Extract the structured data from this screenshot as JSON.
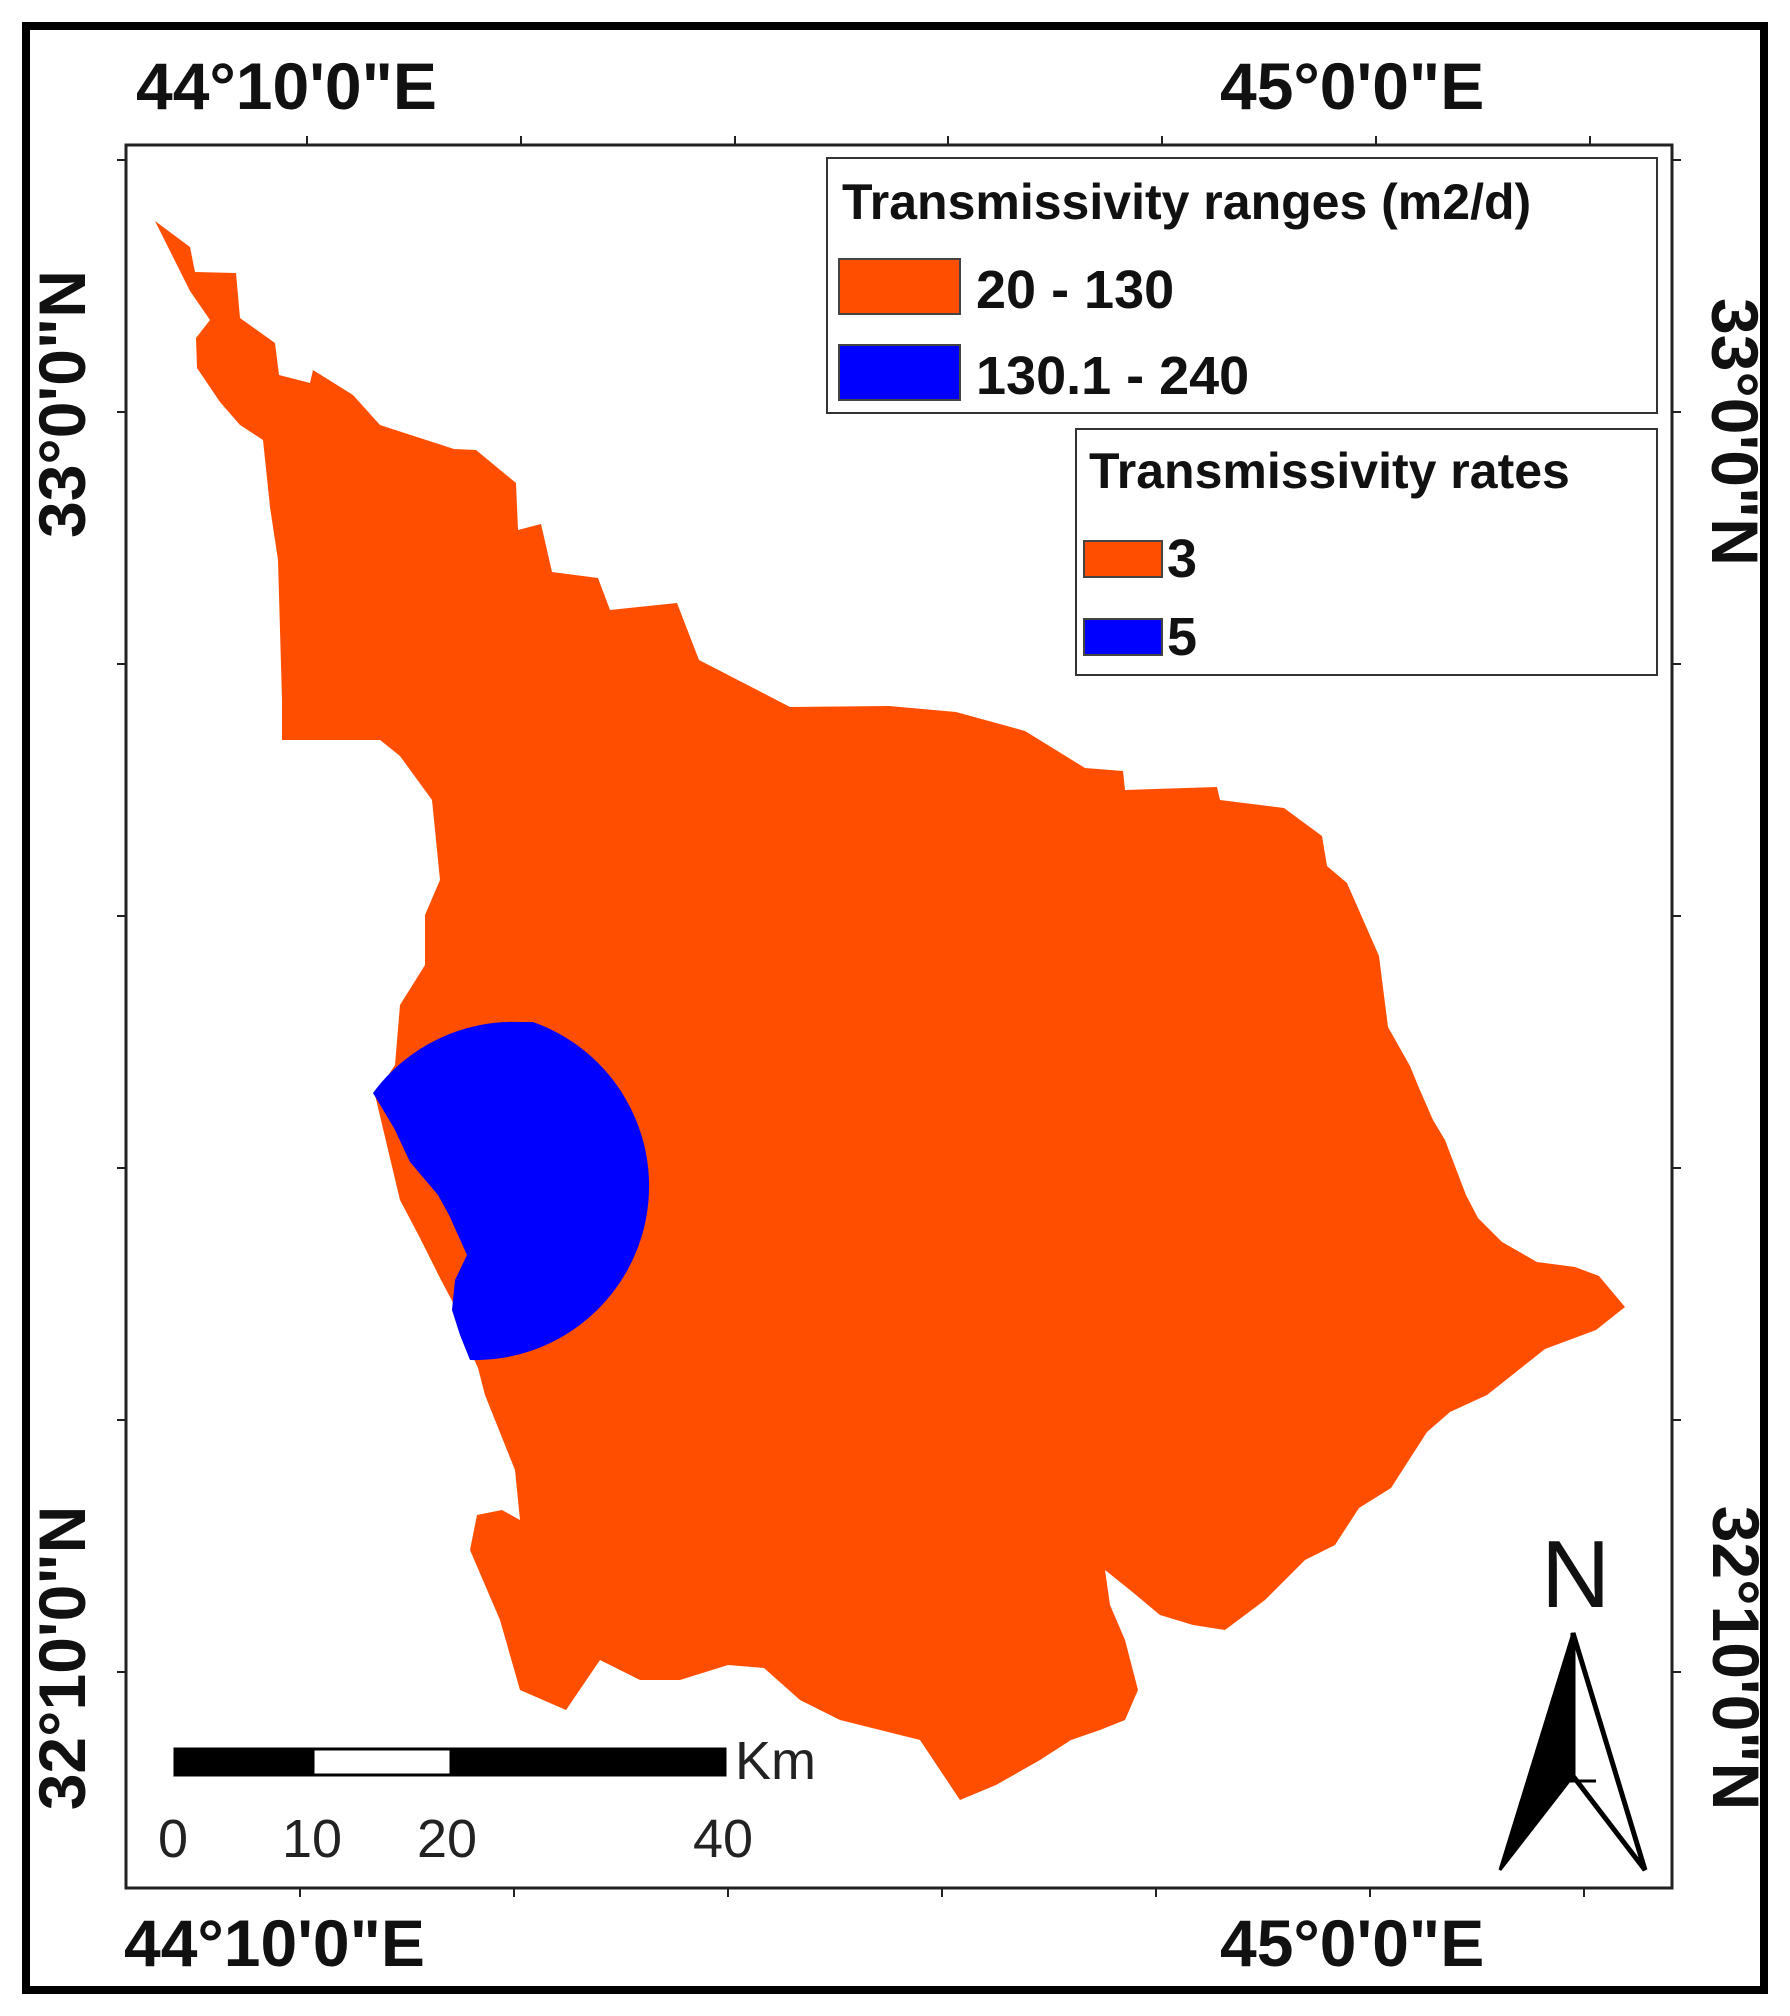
{
  "map": {
    "top_left_longitude": "44°10'0\"E",
    "top_right_longitude": "45°0'0\"E",
    "bottom_left_longitude": "44°10'0\"E",
    "bottom_right_longitude": "45°0'0\"E",
    "left_upper_latitude": "33°0'0\"N",
    "left_lower_latitude": "32°10'0\"N",
    "right_upper_latitude": "33°0'0\"N",
    "right_lower_latitude": "32°10'0\"N"
  },
  "legend_ranges": {
    "title": "Transmissivity ranges (m2/d)",
    "items": [
      {
        "label": "20 - 130",
        "color": "#FF4E00"
      },
      {
        "label": "130.1 - 240",
        "color": "#0000FF"
      }
    ]
  },
  "legend_rates": {
    "title": "Transmissivity rates",
    "items": [
      {
        "label": "3",
        "color": "#FF4E00"
      },
      {
        "label": "5",
        "color": "#0000FF"
      }
    ]
  },
  "scale_bar": {
    "unit": "Km",
    "ticks": [
      "0",
      "10",
      "20",
      "40"
    ]
  },
  "north_arrow": {
    "label": "N"
  },
  "colors": {
    "low_zone": "#FF4E00",
    "high_zone": "#0000FF",
    "frame": "#000000"
  }
}
